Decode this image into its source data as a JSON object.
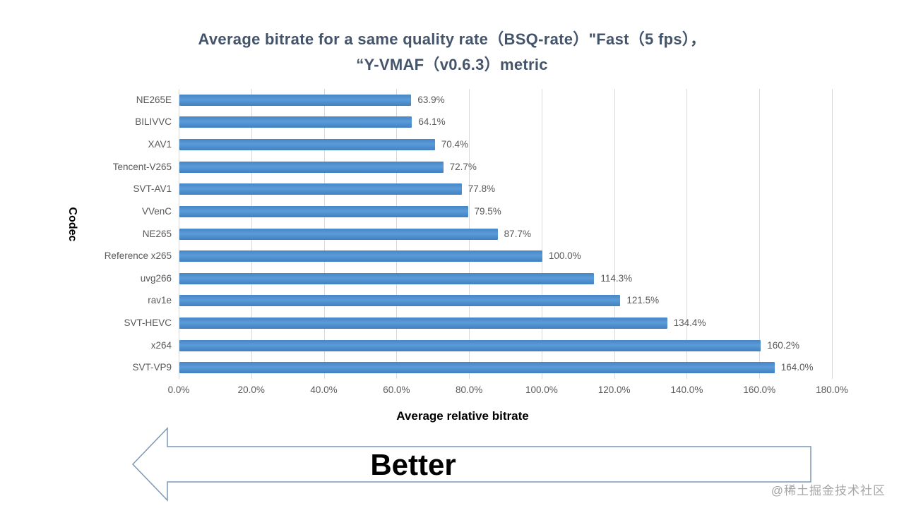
{
  "title": {
    "line1": "Average bitrate for a same quality rate（BSQ-rate）\"Fast（5 fps），",
    "line2": "“Y-VMAF（v0.6.3）metric"
  },
  "chart_data": {
    "type": "bar",
    "orientation": "horizontal",
    "title": "Average bitrate for a same quality rate（BSQ-rate）\"Fast（5 fps），“Y-VMAF（v0.6.3）metric",
    "categories": [
      "NE265E",
      "BILIVVC",
      "XAV1",
      "Tencent-V265",
      "SVT-AV1",
      "VVenC",
      "NE265",
      "Reference x265",
      "uvg266",
      "rav1e",
      "SVT-HEVC",
      "x264",
      "SVT-VP9"
    ],
    "values": [
      63.9,
      64.1,
      70.4,
      72.7,
      77.8,
      79.5,
      87.7,
      100.0,
      114.3,
      121.5,
      134.4,
      160.2,
      164.0
    ],
    "value_labels": [
      "63.9%",
      "64.1%",
      "70.4%",
      "72.7%",
      "77.8%",
      "79.5%",
      "87.7%",
      "100.0%",
      "114.3%",
      "121.5%",
      "134.4%",
      "160.2%",
      "164.0%"
    ],
    "xlabel": "Average relative bitrate",
    "ylabel": "Codec",
    "xlim": [
      0,
      180
    ],
    "xticks": [
      "0.0%",
      "20.0%",
      "40.0%",
      "60.0%",
      "80.0%",
      "100.0%",
      "120.0%",
      "140.0%",
      "160.0%",
      "180.0%"
    ],
    "grid": "vertical-only",
    "legend": "none",
    "bar_color": "#4E8FCE"
  },
  "annotation": {
    "better_label": "Better"
  },
  "watermark": "@稀土掘金技术社区",
  "colors": {
    "bar_top": "#4886C6",
    "bar_mid": "#5B9BD8",
    "bar_bot": "#4080C2",
    "grid": "#D9D9D9",
    "axis_label": "#595959",
    "title": "#44546A",
    "arrow_stroke": "#7C98B6",
    "watermark": "#A6A6A6"
  }
}
